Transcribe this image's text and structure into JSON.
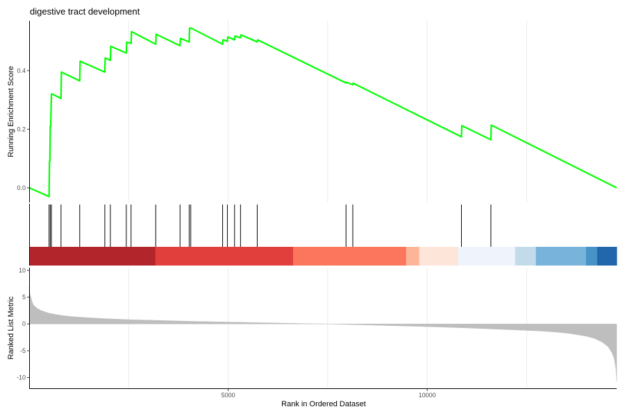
{
  "chart_data": [
    {
      "panel": "running-enrichment",
      "type": "line",
      "title": "digestive tract development",
      "ylabel": "Running Enrichment Score",
      "yticks": [
        0.0,
        0.2,
        0.4
      ],
      "ytick_labels": [
        "0.0",
        "0.2",
        "0.4"
      ],
      "ylim": [
        -0.05,
        0.57
      ],
      "color": "#00ff00",
      "grid": true,
      "x": [
        0,
        500,
        510,
        520,
        530,
        540,
        560,
        580,
        800,
        810,
        1270,
        1280,
        1900,
        1910,
        2040,
        2050,
        2440,
        2450,
        2560,
        2570,
        3180,
        3190,
        3790,
        3800,
        4020,
        4030,
        4060,
        4070,
        4860,
        4870,
        4980,
        4990,
        5160,
        5170,
        5310,
        5320,
        5730,
        5740,
        7960,
        7970,
        8130,
        8140,
        10860,
        10870,
        11600,
        11610,
        14760
      ],
      "y": [
        0.0,
        -0.03,
        0.09,
        0.09,
        0.21,
        0.21,
        0.32,
        0.32,
        0.305,
        0.395,
        0.365,
        0.432,
        0.395,
        0.443,
        0.435,
        0.483,
        0.46,
        0.497,
        0.493,
        0.533,
        0.49,
        0.524,
        0.485,
        0.51,
        0.498,
        0.545,
        0.544,
        0.545,
        0.49,
        0.505,
        0.5,
        0.515,
        0.505,
        0.518,
        0.512,
        0.522,
        0.498,
        0.505,
        0.358,
        0.36,
        0.352,
        0.357,
        0.174,
        0.212,
        0.164,
        0.214,
        0.0
      ]
    },
    {
      "panel": "gene-hits",
      "type": "rug",
      "x": [
        500,
        530,
        560,
        800,
        1270,
        1900,
        2040,
        2440,
        2560,
        3180,
        3790,
        4020,
        4060,
        4860,
        4980,
        5160,
        5310,
        5730,
        7960,
        8130,
        10860,
        11600
      ],
      "color_bands": [
        {
          "from": 0,
          "to": 3170,
          "color": "#b2252b"
        },
        {
          "from": 3170,
          "to": 6630,
          "color": "#e13f3c"
        },
        {
          "from": 6630,
          "to": 9470,
          "color": "#fb765d"
        },
        {
          "from": 9470,
          "to": 9800,
          "color": "#fcb599"
        },
        {
          "from": 9800,
          "to": 10770,
          "color": "#fde5d9"
        },
        {
          "from": 10770,
          "to": 12210,
          "color": "#eff3fb"
        },
        {
          "from": 12210,
          "to": 12730,
          "color": "#c1dbea"
        },
        {
          "from": 12730,
          "to": 13990,
          "color": "#77b3da"
        },
        {
          "from": 13990,
          "to": 14270,
          "color": "#4593c7"
        },
        {
          "from": 14270,
          "to": 14760,
          "color": "#2267ac"
        }
      ]
    },
    {
      "panel": "ranked-metric",
      "type": "area",
      "xlabel": "Rank in Ordered Dataset",
      "ylabel": "Ranked List Metric",
      "xticks": [
        5000,
        10000
      ],
      "xtick_labels": [
        "5000",
        "10000"
      ],
      "xlim": [
        0,
        14760
      ],
      "yticks": [
        10,
        5,
        0,
        -5,
        -10
      ],
      "ytick_labels": [
        "10",
        "5",
        "0",
        "-5",
        "-10"
      ],
      "ylim": [
        -12,
        10.5
      ],
      "color": "#bebebe",
      "x": [
        0,
        20,
        60,
        100,
        200,
        300,
        500,
        800,
        1100,
        1500,
        2000,
        2500,
        3000,
        3500,
        4000,
        5000,
        6000,
        7000,
        7500,
        8000,
        9000,
        10000,
        11000,
        12000,
        12800,
        13200,
        13600,
        14000,
        14200,
        14400,
        14550,
        14650,
        14700,
        14740,
        14760
      ],
      "y": [
        7.0,
        5.6,
        4.5,
        3.6,
        2.9,
        2.5,
        2.0,
        1.6,
        1.35,
        1.15,
        0.95,
        0.8,
        0.7,
        0.6,
        0.5,
        0.35,
        0.2,
        0.05,
        0.0,
        -0.1,
        -0.3,
        -0.5,
        -0.75,
        -1.05,
        -1.3,
        -1.5,
        -1.8,
        -2.3,
        -2.7,
        -3.4,
        -4.3,
        -5.5,
        -6.5,
        -8.3,
        -10.7
      ]
    }
  ]
}
